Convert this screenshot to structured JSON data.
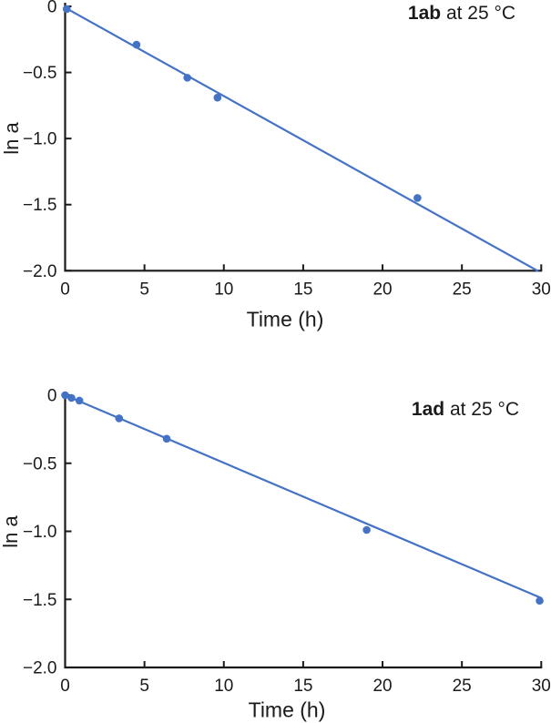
{
  "page": {
    "background": "#ffffff",
    "axis_color": "#1a1a1a",
    "accent": "#4472C4"
  },
  "chart_data": [
    {
      "type": "scatter",
      "title_bold": "1ab",
      "title_rest": " at 25 °C",
      "xlabel": "Time (h)",
      "ylabel": "ln a",
      "xlim": [
        0,
        30
      ],
      "ylim": [
        -2.0,
        0
      ],
      "grid": false,
      "legend": false,
      "x_ticks": [
        {
          "v": 0,
          "label": "0"
        },
        {
          "v": 5,
          "label": "5"
        },
        {
          "v": 10,
          "label": "10"
        },
        {
          "v": 15,
          "label": "15"
        },
        {
          "v": 20,
          "label": "20"
        },
        {
          "v": 25,
          "label": "25"
        },
        {
          "v": 30,
          "label": "30"
        }
      ],
      "y_ticks": [
        {
          "v": 0,
          "label": "0"
        },
        {
          "v": -0.5,
          "label": "−0.5"
        },
        {
          "v": -1.0,
          "label": "−1.0"
        },
        {
          "v": -1.5,
          "label": "−1.5"
        },
        {
          "v": -2.0,
          "label": "−2.0"
        }
      ],
      "points": [
        [
          0.1,
          -0.02
        ],
        [
          4.5,
          -0.29
        ],
        [
          7.7,
          -0.54
        ],
        [
          9.6,
          -0.69
        ],
        [
          22.2,
          -1.45
        ]
      ],
      "fit_line": {
        "x1": 0,
        "y1": -0.01,
        "x2": 29.76,
        "y2": -2.0
      },
      "marker_color": "#4472C4",
      "line_color": "#4472C4"
    },
    {
      "type": "scatter",
      "title_bold": "1ad",
      "title_rest": " at 25 °C",
      "xlabel": "Time (h)",
      "ylabel": "ln a",
      "xlim": [
        0,
        30
      ],
      "ylim": [
        -2.0,
        0
      ],
      "grid": false,
      "legend": false,
      "x_ticks": [
        {
          "v": 0,
          "label": "0"
        },
        {
          "v": 5,
          "label": "5"
        },
        {
          "v": 10,
          "label": "10"
        },
        {
          "v": 15,
          "label": "15"
        },
        {
          "v": 20,
          "label": "20"
        },
        {
          "v": 25,
          "label": "25"
        },
        {
          "v": 30,
          "label": "30"
        }
      ],
      "y_ticks": [
        {
          "v": 0,
          "label": "0"
        },
        {
          "v": -0.5,
          "label": "−0.5"
        },
        {
          "v": -1.0,
          "label": "−1.0"
        },
        {
          "v": -1.5,
          "label": "−1.5"
        },
        {
          "v": -2.0,
          "label": "−2.0"
        }
      ],
      "points": [
        [
          0.0,
          0.0
        ],
        [
          0.4,
          -0.02
        ],
        [
          0.9,
          -0.04
        ],
        [
          3.4,
          -0.17
        ],
        [
          6.4,
          -0.32
        ],
        [
          19.0,
          -0.99
        ],
        [
          29.9,
          -1.51
        ]
      ],
      "fit_line": {
        "x1": 0,
        "y1": 0.0,
        "x2": 30,
        "y2": -1.49
      },
      "marker_color": "#4472C4",
      "line_color": "#4472C4"
    }
  ]
}
